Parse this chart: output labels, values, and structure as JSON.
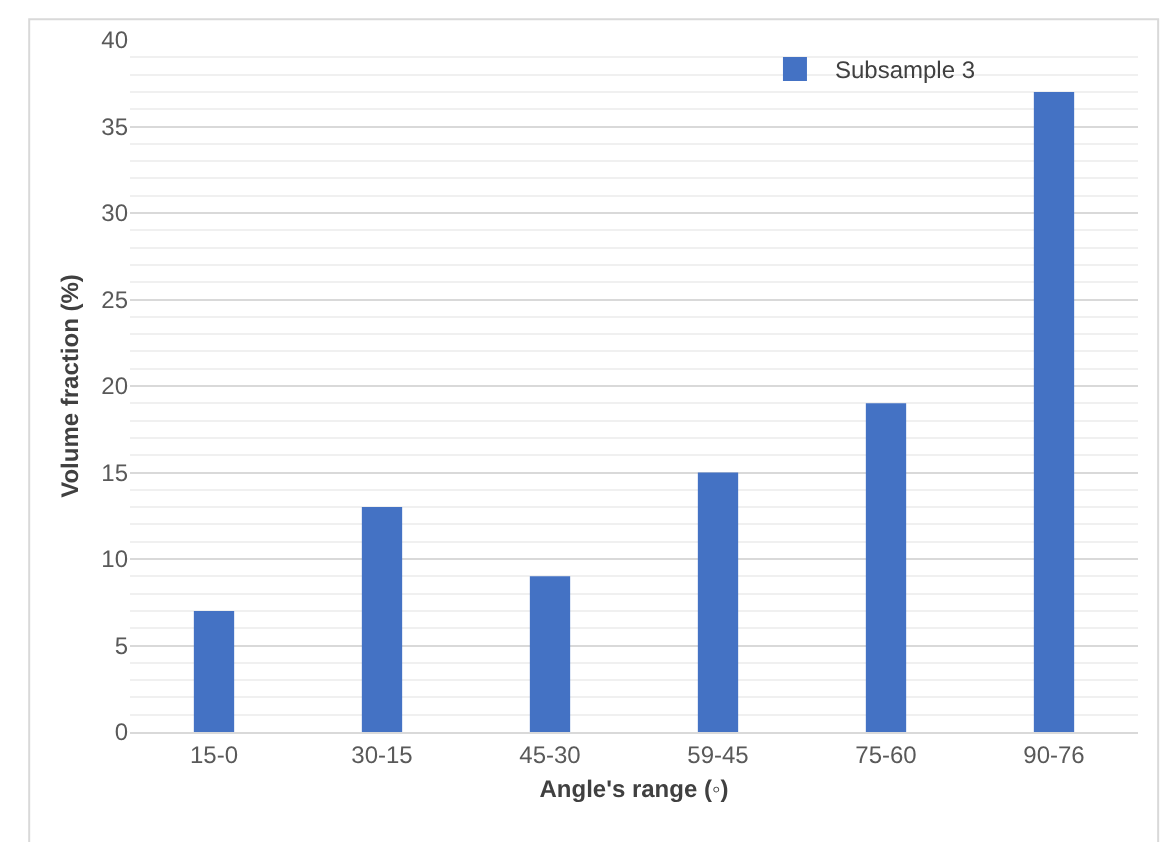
{
  "chart_data": {
    "type": "bar",
    "xlabel": "Angle's range (◦)",
    "ylabel": "Volume fraction (%)",
    "categories": [
      "15-0",
      "30-15",
      "45-30",
      "59-45",
      "75-60",
      "90-76"
    ],
    "series": [
      {
        "name": "Subsample 3",
        "color": "#4472c4",
        "values": [
          7,
          13,
          9,
          15,
          19,
          37
        ]
      }
    ],
    "ylim": [
      0,
      40
    ],
    "yticks": [
      0,
      5,
      10,
      15,
      20,
      25,
      30,
      35,
      40
    ],
    "grid": "y",
    "legend": "top right"
  }
}
